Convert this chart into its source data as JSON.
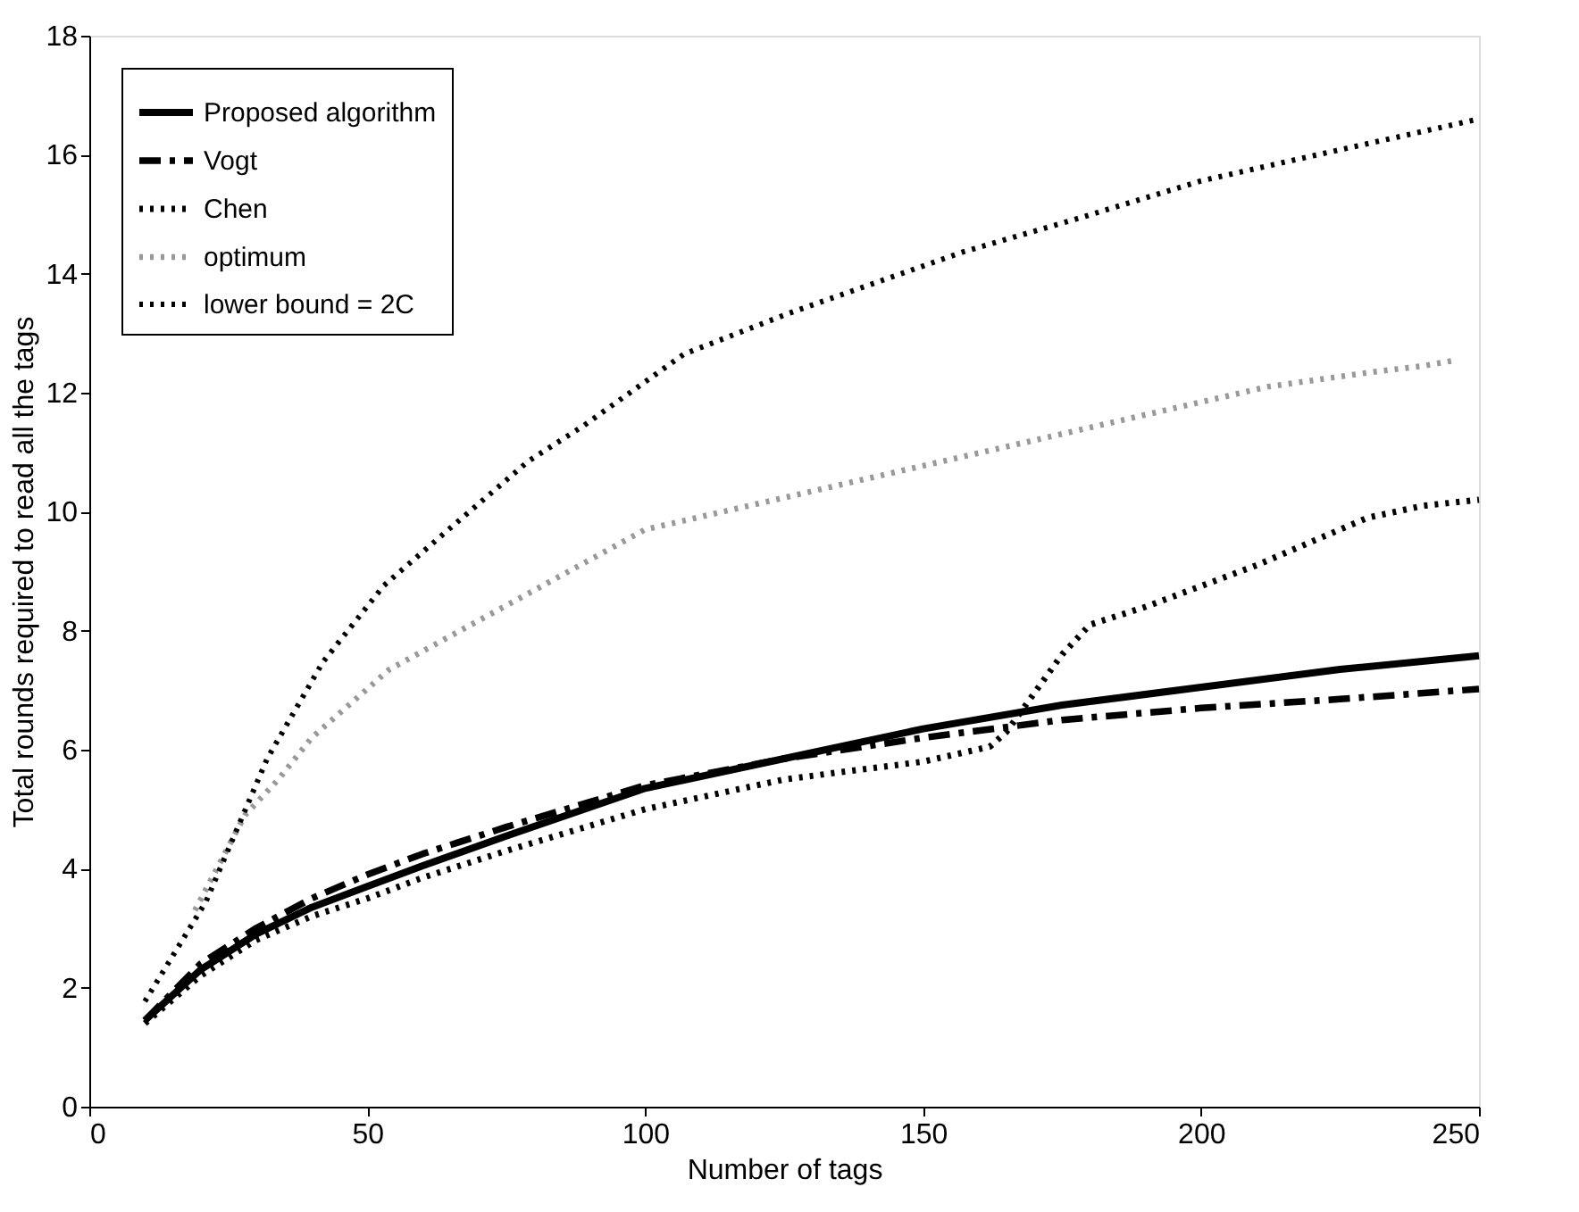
{
  "chart_data": {
    "type": "line",
    "xlabel": "Number of tags",
    "ylabel": "Total rounds required to read all the tags",
    "xlim": [
      0,
      250
    ],
    "xticks": [
      0,
      50,
      100,
      150,
      200,
      250
    ],
    "ylim": [
      0,
      18
    ],
    "yticks": [
      0,
      2,
      4,
      6,
      8,
      10,
      12,
      14,
      16,
      18
    ],
    "grid": false,
    "legend": "top left",
    "marker": "none",
    "series": [
      {
        "name": "Proposed algorithm",
        "color": "#000000",
        "line_style": "solid",
        "x": [
          10,
          20,
          30,
          40,
          50,
          60,
          75,
          100,
          125,
          150,
          175,
          200,
          225,
          250
        ],
        "values": [
          1.45,
          2.3,
          2.9,
          3.35,
          3.7,
          4.05,
          4.55,
          5.35,
          5.85,
          6.35,
          6.75,
          7.05,
          7.35,
          7.58
        ]
      },
      {
        "name": "Vogt",
        "color": "#000000",
        "line_style": "dashed",
        "x": [
          10,
          20,
          30,
          40,
          50,
          60,
          75,
          100,
          125,
          150,
          175,
          200,
          225,
          250
        ],
        "values": [
          1.45,
          2.4,
          3.0,
          3.5,
          3.9,
          4.25,
          4.7,
          5.4,
          5.85,
          6.2,
          6.5,
          6.7,
          6.85,
          7.02
        ]
      },
      {
        "name": "Chen",
        "color": "#000000",
        "line_style": "dotted",
        "x": [
          10,
          20,
          30,
          40,
          50,
          60,
          75,
          100,
          125,
          150,
          162,
          165,
          170,
          175,
          180,
          190,
          200,
          210,
          220,
          230,
          240,
          250
        ],
        "values": [
          1.4,
          2.2,
          2.8,
          3.2,
          3.5,
          3.85,
          4.3,
          5.0,
          5.5,
          5.8,
          6.05,
          6.3,
          6.95,
          7.6,
          8.1,
          8.4,
          8.75,
          9.1,
          9.5,
          9.9,
          10.1,
          10.2
        ]
      },
      {
        "name": "optimum",
        "color": "#999999",
        "line_style": "dotted",
        "x": [
          19,
          28,
          34,
          40,
          54,
          100,
          212,
          231,
          240,
          246
        ],
        "values": [
          3.3,
          4.9,
          5.5,
          6.2,
          7.35,
          9.7,
          12.1,
          12.35,
          12.45,
          12.55
        ]
      },
      {
        "name": "lower bound = 2C",
        "color": "#000000",
        "line_style": "dotted",
        "x": [
          10,
          21,
          32,
          42,
          53,
          64,
          79,
          89,
          107,
          126,
          157,
          179,
          200,
          221,
          250
        ],
        "values": [
          1.77,
          3.45,
          5.85,
          7.47,
          8.76,
          9.65,
          10.85,
          11.45,
          12.65,
          13.34,
          14.36,
          14.96,
          15.56,
          16.0,
          16.6
        ]
      }
    ]
  }
}
